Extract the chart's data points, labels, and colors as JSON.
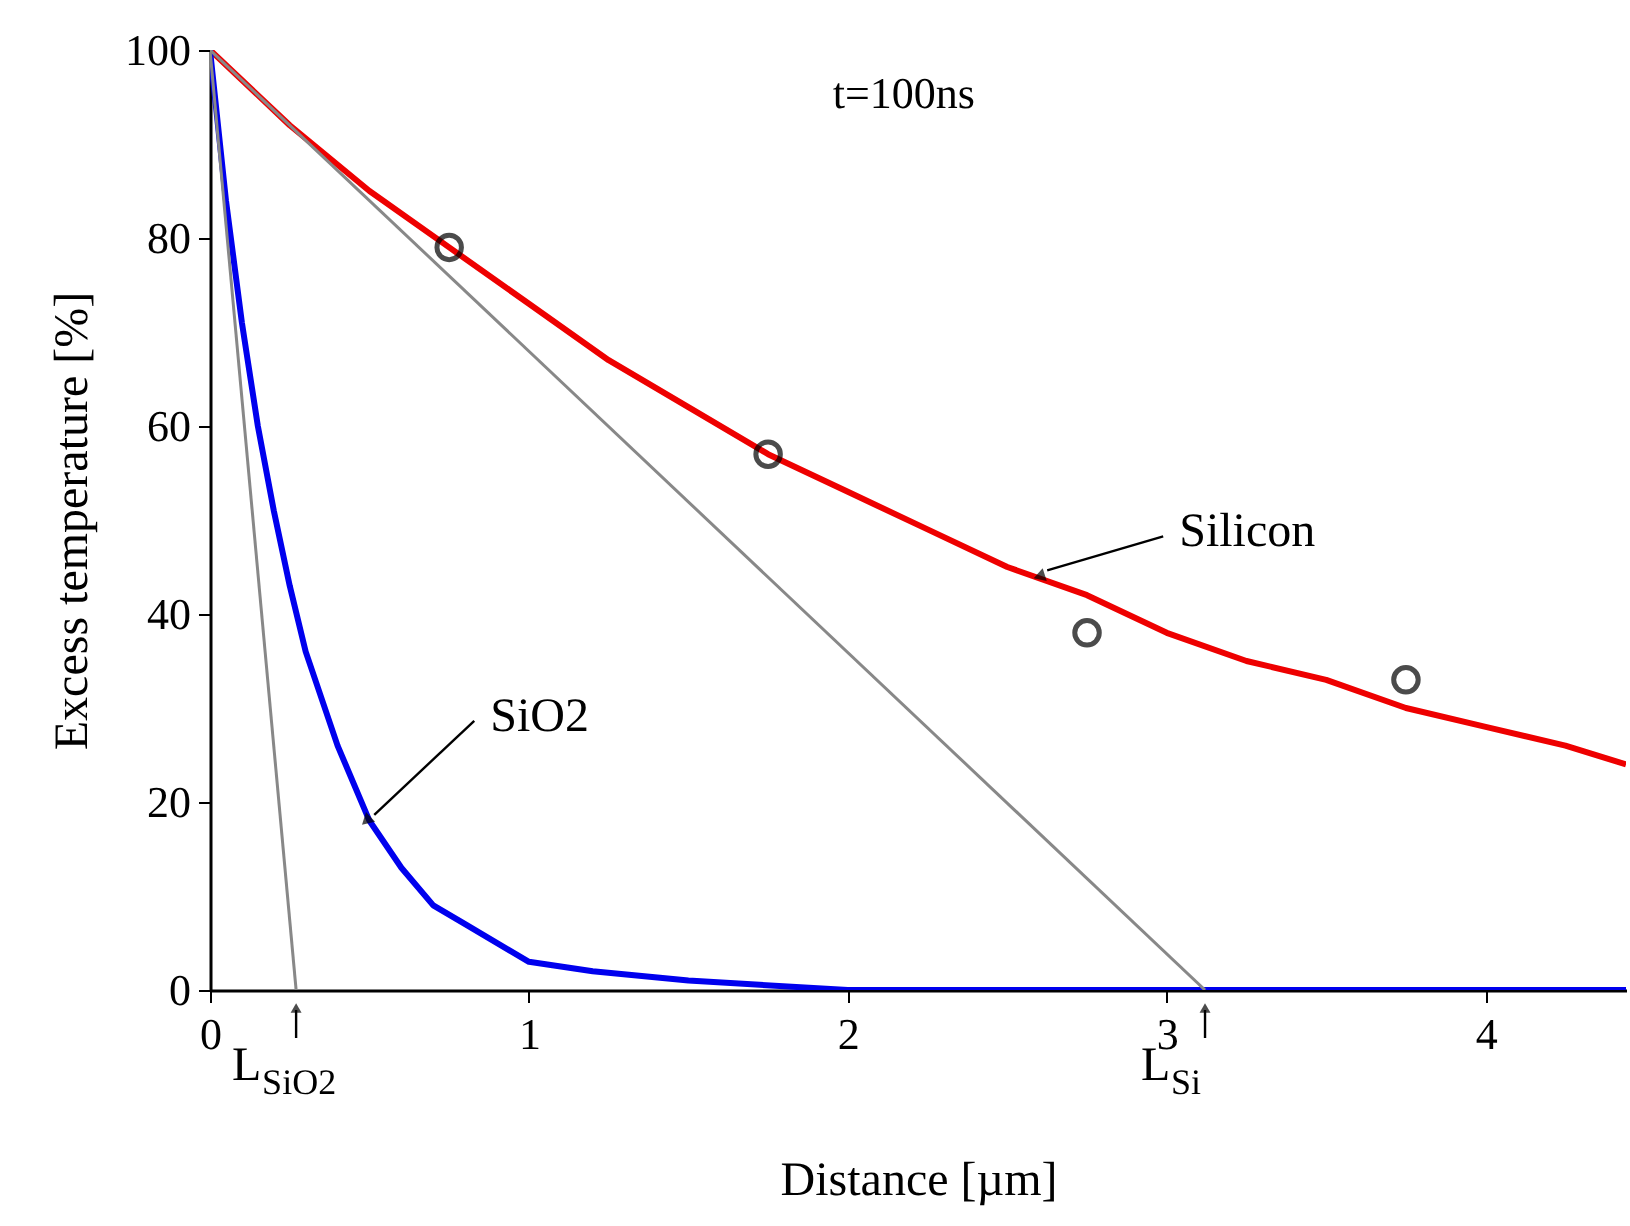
{
  "chart_data": {
    "type": "line",
    "xlabel": "Distance [µm]",
    "ylabel": "Excess temperature [%]",
    "xlim": [
      0,
      4.44
    ],
    "ylim": [
      0,
      100
    ],
    "xticks": [
      0,
      1,
      2,
      3,
      4
    ],
    "yticks": [
      0,
      20,
      40,
      60,
      80,
      100
    ],
    "grid": false,
    "series": [
      {
        "color": "#ee0000",
        "x": [
          0,
          0.25,
          0.5,
          0.75,
          1,
          1.25,
          1.5,
          1.75,
          2,
          2.25,
          2.5,
          2.75,
          3,
          3.25,
          3.5,
          3.75,
          4,
          4.25,
          4.44
        ],
        "values": [
          100,
          92,
          85,
          79,
          73,
          67,
          62,
          57,
          53,
          49,
          45,
          42,
          38,
          35,
          33,
          30,
          28,
          26,
          24
        ]
      },
      {
        "color": "#0000ee",
        "x": [
          0,
          0.05,
          0.1,
          0.15,
          0.2,
          0.25,
          0.3,
          0.4,
          0.5,
          0.6,
          0.7,
          0.8,
          1,
          1.2,
          1.5,
          2,
          4.44
        ],
        "values": [
          100,
          84,
          71,
          60,
          51,
          43,
          36,
          26,
          18,
          13,
          9,
          7,
          3,
          2,
          1,
          0,
          0
        ]
      },
      {
        "color": "#888888",
        "x": [
          0,
          0.27
        ],
        "values": [
          100,
          0
        ]
      },
      {
        "color": "#888888",
        "x": [
          0,
          3.12
        ],
        "values": [
          100,
          0
        ]
      },
      {
        "type": "scatter",
        "color": "#000000",
        "marker": "circle",
        "x": [
          0.75,
          1.75,
          2.75,
          3.75
        ],
        "values": [
          79,
          57,
          38,
          33
        ]
      }
    ],
    "annotations": [
      "t=100ns",
      {
        "text": "Silicon",
        "x": 2.6,
        "y": 44
      },
      {
        "text": "SiO2",
        "x": 0.49,
        "y": 18
      },
      {
        "text": "L$_{SiO2}$",
        "x": 0.27,
        "y": 0
      },
      {
        "text": "L$_{Si}$",
        "x": 3.12,
        "y": 0
      }
    ]
  }
}
